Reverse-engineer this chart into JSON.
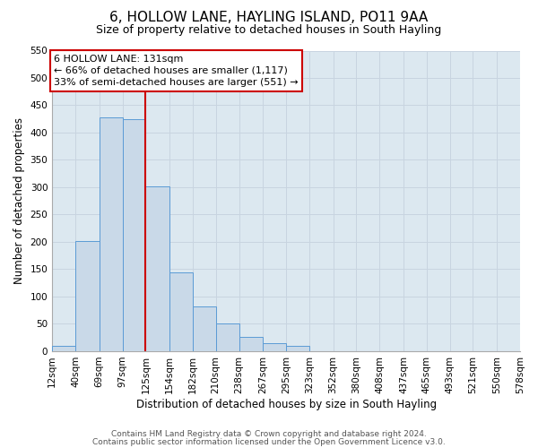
{
  "title": "6, HOLLOW LANE, HAYLING ISLAND, PO11 9AA",
  "subtitle": "Size of property relative to detached houses in South Hayling",
  "xlabel": "Distribution of detached houses by size in South Hayling",
  "ylabel": "Number of detached properties",
  "footnote1": "Contains HM Land Registry data © Crown copyright and database right 2024.",
  "footnote2": "Contains public sector information licensed under the Open Government Licence v3.0.",
  "bar_edges": [
    12,
    40,
    69,
    97,
    125,
    154,
    182,
    210,
    238,
    267,
    295,
    323,
    352,
    380,
    408,
    437,
    465,
    493,
    521,
    550,
    578
  ],
  "bar_heights": [
    10,
    201,
    428,
    425,
    301,
    144,
    82,
    50,
    26,
    14,
    10,
    0,
    0,
    0,
    0,
    0,
    0,
    0,
    0,
    0,
    4
  ],
  "tick_labels": [
    "12sqm",
    "40sqm",
    "69sqm",
    "97sqm",
    "125sqm",
    "154sqm",
    "182sqm",
    "210sqm",
    "238sqm",
    "267sqm",
    "295sqm",
    "323sqm",
    "352sqm",
    "380sqm",
    "408sqm",
    "437sqm",
    "465sqm",
    "493sqm",
    "521sqm",
    "550sqm",
    "578sqm"
  ],
  "ylim": [
    0,
    550
  ],
  "yticks": [
    0,
    50,
    100,
    150,
    200,
    250,
    300,
    350,
    400,
    450,
    500,
    550
  ],
  "bar_color": "#c9d9e8",
  "bar_edge_color": "#5b9bd5",
  "grid_color": "#c8d4e0",
  "background_color": "#dce8f0",
  "vline_x": 125,
  "vline_color": "#cc0000",
  "annotation_line1": "6 HOLLOW LANE: 131sqm",
  "annotation_line2": "← 66% of detached houses are smaller (1,117)",
  "annotation_line3": "33% of semi-detached houses are larger (551) →",
  "annotation_box_color": "#cc0000",
  "title_fontsize": 11,
  "subtitle_fontsize": 9,
  "axis_label_fontsize": 8.5,
  "tick_fontsize": 7.5,
  "annotation_fontsize": 8,
  "footnote_fontsize": 6.5
}
